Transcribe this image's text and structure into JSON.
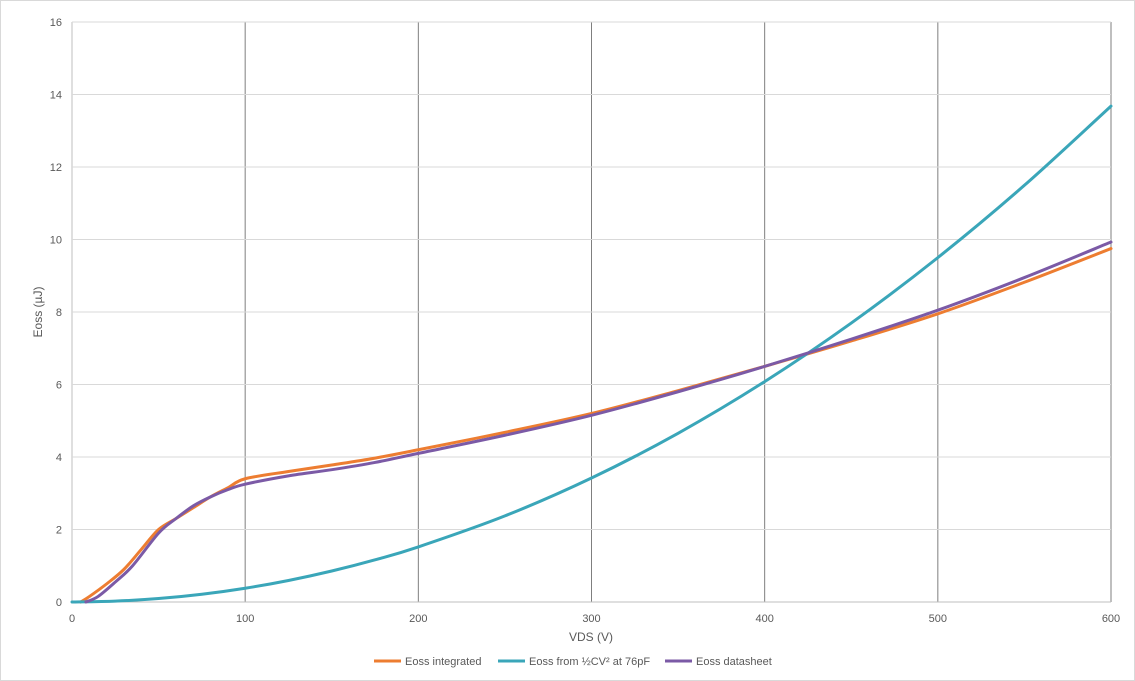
{
  "chart_data": {
    "type": "line",
    "title": "",
    "xlabel": "VDS (V)",
    "ylabel": "Eoss (µJ)",
    "xlim": [
      0,
      600
    ],
    "ylim": [
      0,
      16
    ],
    "x_ticks": [
      0,
      100,
      200,
      300,
      400,
      500,
      600
    ],
    "y_ticks": [
      0,
      2,
      4,
      6,
      8,
      10,
      12,
      14,
      16
    ],
    "grid": {
      "horizontal": true,
      "vertical": true
    },
    "legend_position": "bottom",
    "series": [
      {
        "name": "Eoss integrated",
        "color": "#ED7D31",
        "points": [
          [
            5,
            0.0
          ],
          [
            10,
            0.15
          ],
          [
            20,
            0.5
          ],
          [
            30,
            0.9
          ],
          [
            40,
            1.45
          ],
          [
            50,
            2.0
          ],
          [
            60,
            2.3
          ],
          [
            70,
            2.6
          ],
          [
            80,
            2.9
          ],
          [
            90,
            3.15
          ],
          [
            100,
            3.4
          ],
          [
            125,
            3.6
          ],
          [
            150,
            3.78
          ],
          [
            175,
            3.97
          ],
          [
            200,
            4.2
          ],
          [
            250,
            4.68
          ],
          [
            300,
            5.2
          ],
          [
            350,
            5.83
          ],
          [
            400,
            6.5
          ],
          [
            450,
            7.2
          ],
          [
            500,
            7.95
          ],
          [
            550,
            8.82
          ],
          [
            600,
            9.75
          ]
        ]
      },
      {
        "name": "Eoss from ½CV² at 76pF",
        "color": "#3AA6B9",
        "points": [
          [
            0,
            0.0
          ],
          [
            25,
            0.024
          ],
          [
            50,
            0.095
          ],
          [
            75,
            0.214
          ],
          [
            100,
            0.38
          ],
          [
            125,
            0.594
          ],
          [
            150,
            0.855
          ],
          [
            175,
            1.164
          ],
          [
            200,
            1.52
          ],
          [
            250,
            2.375
          ],
          [
            300,
            3.42
          ],
          [
            350,
            4.655
          ],
          [
            400,
            6.08
          ],
          [
            450,
            7.695
          ],
          [
            500,
            9.5
          ],
          [
            550,
            11.495
          ],
          [
            600,
            13.68
          ]
        ]
      },
      {
        "name": "Eoss datasheet",
        "color": "#7B5AA6",
        "points": [
          [
            8,
            0.0
          ],
          [
            15,
            0.15
          ],
          [
            25,
            0.55
          ],
          [
            35,
            1.0
          ],
          [
            50,
            1.9
          ],
          [
            60,
            2.3
          ],
          [
            70,
            2.65
          ],
          [
            80,
            2.9
          ],
          [
            90,
            3.1
          ],
          [
            100,
            3.25
          ],
          [
            125,
            3.48
          ],
          [
            150,
            3.65
          ],
          [
            175,
            3.85
          ],
          [
            200,
            4.1
          ],
          [
            250,
            4.6
          ],
          [
            300,
            5.15
          ],
          [
            350,
            5.8
          ],
          [
            400,
            6.5
          ],
          [
            450,
            7.25
          ],
          [
            500,
            8.05
          ],
          [
            550,
            8.95
          ],
          [
            600,
            9.93
          ]
        ]
      }
    ]
  }
}
